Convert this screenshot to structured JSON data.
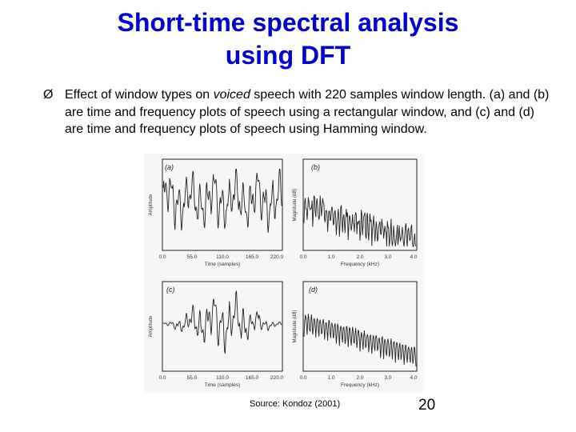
{
  "slide": {
    "title_line1": "Short-time spectral analysis",
    "title_line2": "using DFT",
    "bullet_marker": "Ø",
    "bullet_part1": "Effect of window types on ",
    "bullet_italic": "voiced",
    "bullet_part2": " speech with 220 samples window length. (a) and (b) are time and frequency plots of speech using a rectangular window, and (c) and (d) are time and frequency plots of speech using Hamming window.",
    "source": "Source: Kondoz (2001)",
    "page_number": "20"
  },
  "figure": {
    "panel_a": {
      "tag": "(a)",
      "ylabel": "Amplitude",
      "xlabel": "Time (samples)",
      "ticks": [
        "0.0",
        "55.0",
        "110.0",
        "165.0",
        "220.0"
      ]
    },
    "panel_b": {
      "tag": "(b)",
      "ylabel": "Magnitude (dB)",
      "xlabel": "Frequency (kHz)",
      "ticks": [
        "0.0",
        "1.0",
        "2.0",
        "3.0",
        "4.0"
      ]
    },
    "panel_c": {
      "tag": "(c)",
      "ylabel": "Amplitude",
      "xlabel": "Time (samples)",
      "ticks": [
        "0.0",
        "55.0",
        "110.0",
        "165.0",
        "220.0"
      ]
    },
    "panel_d": {
      "tag": "(d)",
      "ylabel": "Magnitude (dB)",
      "xlabel": "Frequency (kHz)",
      "ticks": [
        "0.0",
        "1.0",
        "2.0",
        "3.0",
        "4.0"
      ]
    }
  }
}
